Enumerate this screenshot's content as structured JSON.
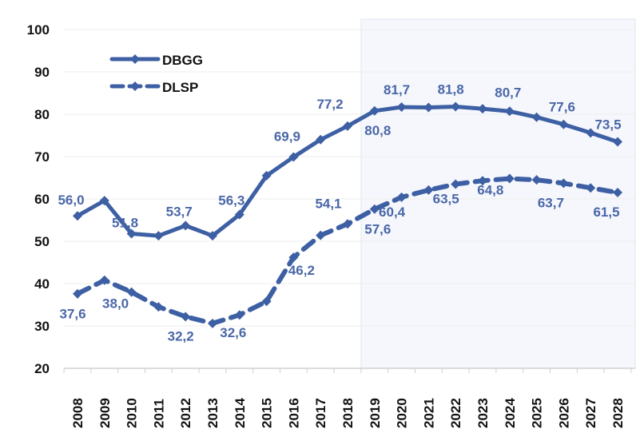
{
  "chart_data": {
    "type": "line",
    "title": "",
    "xlabel": "",
    "ylabel": "",
    "ylim": [
      20,
      100
    ],
    "yticks": [
      20,
      30,
      40,
      50,
      60,
      70,
      80,
      90,
      100
    ],
    "x": [
      2008,
      2009,
      2010,
      2011,
      2012,
      2013,
      2014,
      2015,
      2016,
      2017,
      2018,
      2019,
      2020,
      2021,
      2022,
      2023,
      2024,
      2025,
      2026,
      2027,
      2028
    ],
    "grid": true,
    "legend_placement": "top-left",
    "projection_shaded_from": 2019,
    "series": [
      {
        "name": "DBGG",
        "style": "solid",
        "color": "#3d5fa3",
        "values": [
          56.0,
          59.6,
          51.8,
          51.3,
          53.7,
          51.3,
          56.3,
          65.5,
          69.9,
          74.0,
          77.2,
          80.8,
          81.7,
          81.6,
          81.8,
          81.3,
          80.7,
          79.3,
          77.6,
          75.6,
          73.5
        ],
        "data_labels": [
          "56,0",
          null,
          "51,8",
          null,
          "53,7",
          null,
          "56,3",
          null,
          "69,9",
          null,
          "77,2",
          "80,8",
          "81,7",
          null,
          "81,8",
          null,
          "80,7",
          null,
          "77,6",
          null,
          "73,5"
        ]
      },
      {
        "name": "DLSP",
        "style": "dashed",
        "color": "#3d5fa3",
        "values": [
          37.6,
          40.8,
          38.0,
          34.5,
          32.2,
          30.6,
          32.6,
          35.8,
          46.2,
          51.4,
          54.1,
          57.6,
          60.4,
          62.1,
          63.5,
          64.3,
          64.8,
          64.5,
          63.7,
          62.6,
          61.5
        ],
        "data_labels": [
          "37,6",
          null,
          "38,0",
          null,
          "32,2",
          null,
          "32,6",
          null,
          "46,2",
          null,
          "54,1",
          "57,6",
          "60,4",
          null,
          "63,5",
          null,
          "64,8",
          null,
          "63,7",
          null,
          "61,5"
        ]
      }
    ]
  }
}
